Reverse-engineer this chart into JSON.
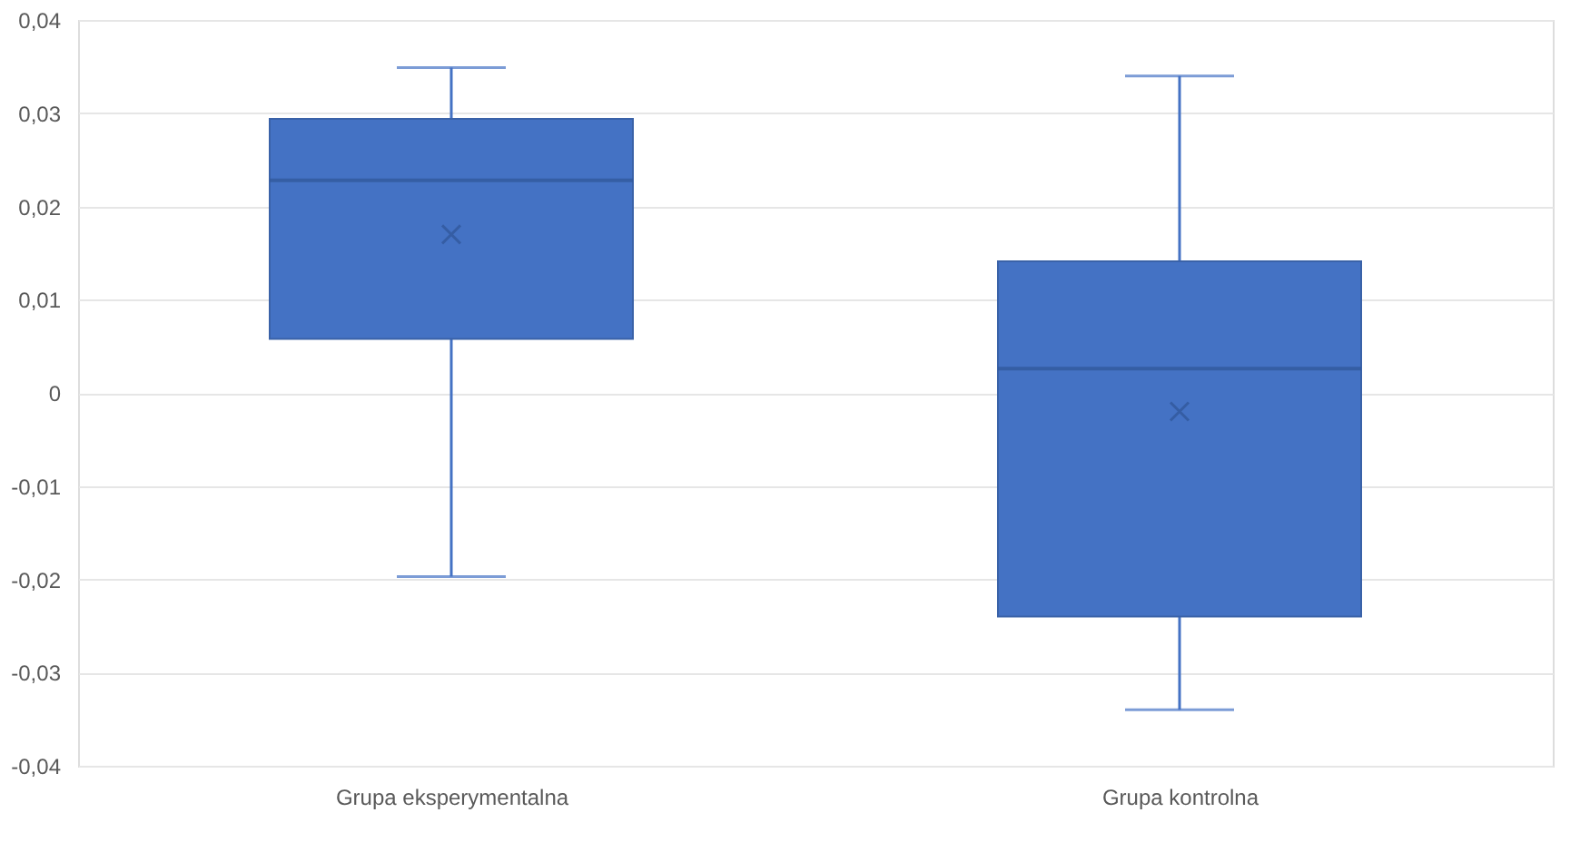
{
  "chart_data": {
    "type": "box",
    "categories": [
      "Grupa eksperymentalna",
      "Grupa kontrolna"
    ],
    "boxes": [
      {
        "low": -0.0197,
        "q1": 0.0058,
        "median": 0.0228,
        "q3": 0.0294,
        "high": 0.0349,
        "mean": 0.017
      },
      {
        "low": -0.034,
        "q1": -0.024,
        "median": 0.0026,
        "q3": 0.0141,
        "high": 0.034,
        "mean": -0.002
      }
    ],
    "color": "#4472c4",
    "ylim": [
      -0.04,
      0.04
    ],
    "yticks": [
      {
        "value": -0.04,
        "label": "-0,04"
      },
      {
        "value": -0.03,
        "label": "-0,03"
      },
      {
        "value": -0.02,
        "label": "-0,02"
      },
      {
        "value": -0.01,
        "label": "-0,01"
      },
      {
        "value": 0,
        "label": "0"
      },
      {
        "value": 0.01,
        "label": "0,01"
      },
      {
        "value": 0.02,
        "label": "0,02"
      },
      {
        "value": 0.03,
        "label": "0,03"
      },
      {
        "value": 0.04,
        "label": "0,04"
      }
    ],
    "grid": "y",
    "marker": "cross"
  }
}
